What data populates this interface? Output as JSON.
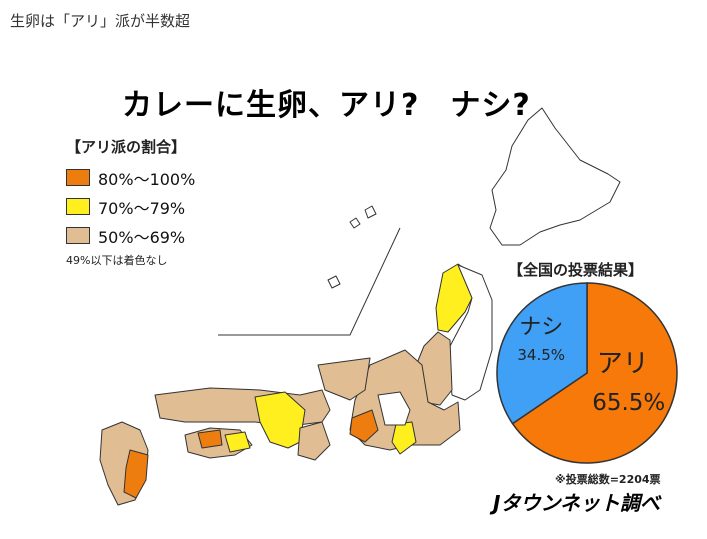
{
  "caption": "生卵は「アリ」派が半数超",
  "title": "カレーに生卵、アリ?　ナシ?",
  "legend": {
    "title": "【アリ派の割合】",
    "items": [
      {
        "label": "80%〜100%",
        "color": "#ee7d10"
      },
      {
        "label": "70%〜79%",
        "color": "#ffef1f"
      },
      {
        "label": "50%〜69%",
        "color": "#e0bd92"
      }
    ],
    "note": "49%以下は着色なし"
  },
  "chart_data": {
    "type": "pie",
    "title": "【全国の投票結果】",
    "slices": [
      {
        "label": "アリ",
        "value": 65.5,
        "display": "65.5%",
        "color": "#f7790a"
      },
      {
        "label": "ナシ",
        "value": 34.5,
        "display": "34.5%",
        "color": "#3fa0f5"
      }
    ]
  },
  "note": "※投票総数=2204票",
  "logo": "Jタウンネット調べ"
}
